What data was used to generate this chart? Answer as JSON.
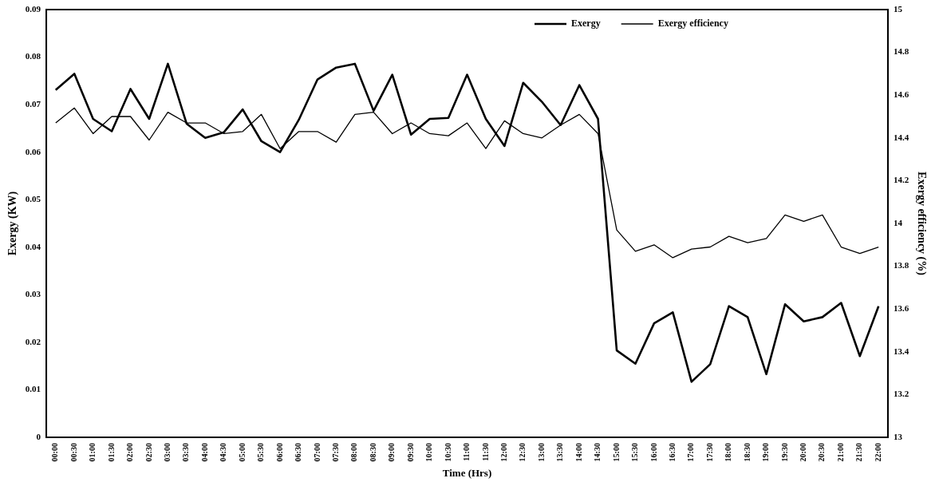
{
  "chart_data": {
    "type": "line",
    "xlabel": "Time (Hrs)",
    "ylabel": "Exergy (KW)",
    "y2label": "Exergy efficiency (%)",
    "categories": [
      "00:00",
      "00:30",
      "01:00",
      "01:30",
      "02:00",
      "02:30",
      "03:00",
      "03:30",
      "04:00",
      "04:30",
      "05:00",
      "05:30",
      "06:00",
      "06:30",
      "07:00",
      "07:30",
      "08:00",
      "08:30",
      "09:00",
      "09:30",
      "10:00",
      "10:30",
      "11:00",
      "11:30",
      "12:00",
      "12:30",
      "13:00",
      "13:30",
      "14:00",
      "14:30",
      "15:00",
      "15:30",
      "16:00",
      "16:30",
      "17:00",
      "17:30",
      "18:00",
      "18:30",
      "19:00",
      "19:30",
      "20:00",
      "20:30",
      "21:00",
      "21:30",
      "22:00"
    ],
    "series": [
      {
        "name": "Exergy",
        "color": "#000000",
        "values": [
          0.0731,
          0.0765,
          0.067,
          0.0644,
          0.0733,
          0.067,
          0.0786,
          0.066,
          0.063,
          0.0642,
          0.069,
          0.0623,
          0.06,
          0.0668,
          0.0753,
          0.0778,
          0.0786,
          0.0687,
          0.0763,
          0.0637,
          0.067,
          0.0672,
          0.0763,
          0.067,
          0.0613,
          0.0746,
          0.0706,
          0.0657,
          0.0741,
          0.067,
          0.0183,
          0.0155,
          0.024,
          0.0263,
          0.0117,
          0.0154,
          0.0276,
          0.0253,
          0.0133,
          0.028,
          0.0244,
          0.0253,
          0.0283,
          0.0171,
          0.0276
        ]
      },
      {
        "name": "Exergy efficiency",
        "color": "#000000",
        "axis": "y2",
        "values": [
          14.47,
          14.54,
          14.42,
          14.5,
          14.5,
          14.39,
          14.52,
          14.47,
          14.47,
          14.42,
          14.43,
          14.51,
          14.35,
          14.43,
          14.43,
          14.38,
          14.51,
          14.52,
          14.42,
          14.47,
          14.42,
          14.41,
          14.47,
          14.35,
          14.48,
          14.42,
          14.4,
          14.46,
          14.51,
          14.42,
          13.97,
          13.87,
          13.9,
          13.84,
          13.88,
          13.89,
          13.94,
          13.91,
          13.93,
          14.04,
          14.01,
          14.04,
          13.89,
          13.86,
          13.89
        ]
      }
    ],
    "ylim": [
      0,
      0.09
    ],
    "yticks": [
      0,
      0.01,
      0.02,
      0.03,
      0.04,
      0.05,
      0.06,
      0.07,
      0.08,
      0.09
    ],
    "y2lim": [
      13,
      15
    ],
    "y2ticks": [
      13,
      13.2,
      13.4,
      13.6,
      13.8,
      14,
      14.2,
      14.4,
      14.6,
      14.8,
      15
    ],
    "legend": "top right",
    "grid": false,
    "marker": "none",
    "line_style": "solid"
  }
}
